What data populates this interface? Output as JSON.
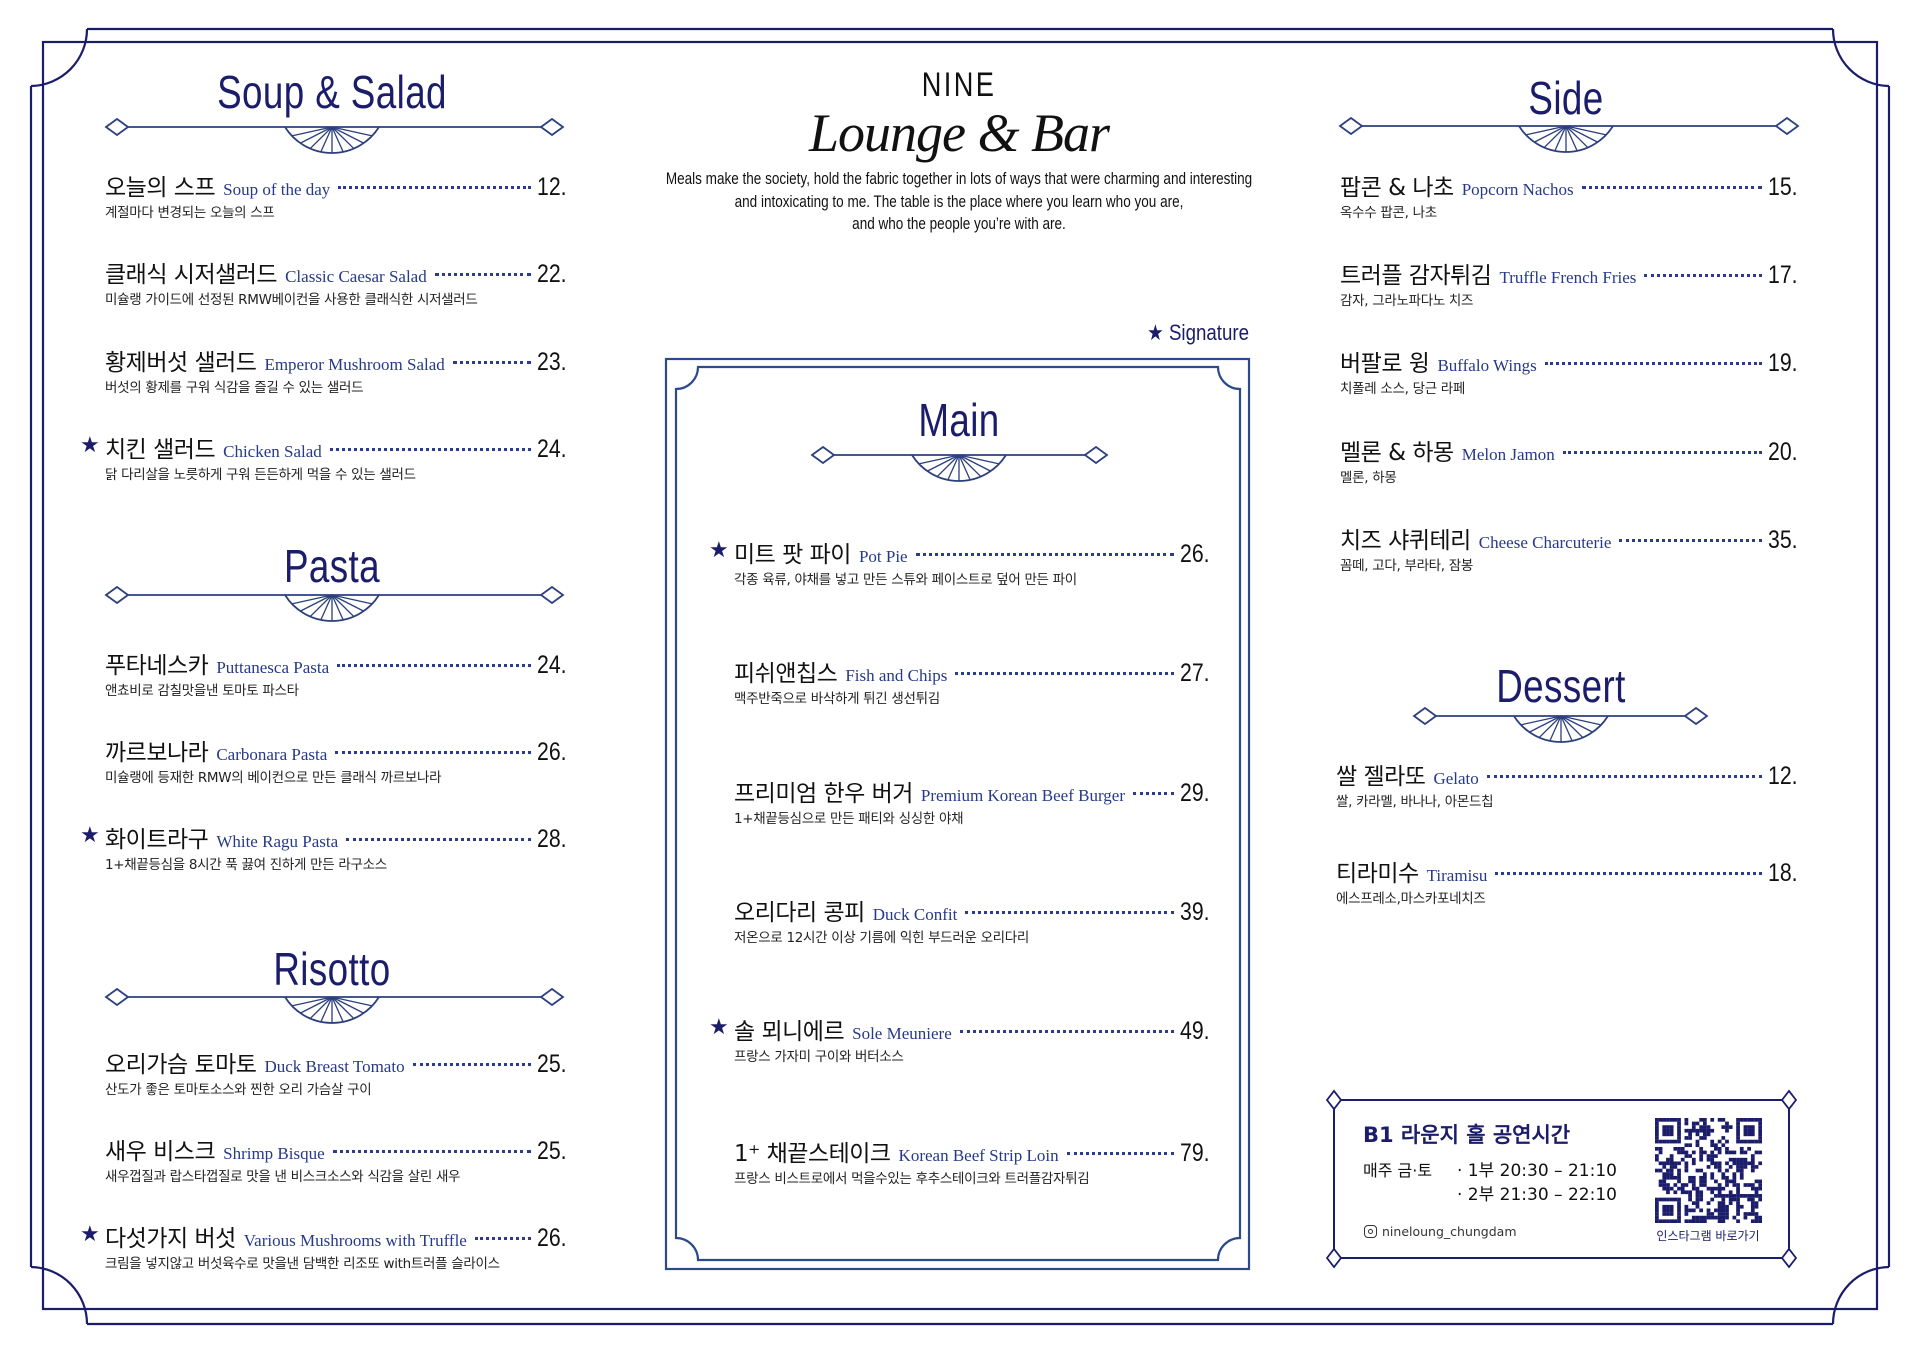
{
  "logo": {
    "top": "NINE",
    "script": "Lounge & Bar"
  },
  "tagline": [
    "Meals make the society, hold the fabric together in lots of ways that were charming and interesting",
    "and intoxicating to me. The table is the place where you learn who you are,",
    "and who the people you’re with are."
  ],
  "signature_legend": "★ Signature",
  "colors": {
    "navy": "#1b1d6b",
    "ornament": "#2c3f7e",
    "english": "#26398a",
    "text": "#111111"
  },
  "sections": {
    "soup": {
      "title": "Soup & Salad",
      "items": [
        {
          "ko": "오늘의 스프",
          "en": "Soup of the day",
          "price": "12.",
          "desc": "계절마다 변경되는 오늘의 스프",
          "signature": false
        },
        {
          "ko": "클래식 시저샐러드",
          "en": "Classic Caesar Salad",
          "price": "22.",
          "desc": "미슐랭 가이드에 선정된 RMW베이컨을 사용한 클래식한 시저샐러드",
          "signature": false
        },
        {
          "ko": "황제버섯 샐러드",
          "en": "Emperor Mushroom Salad",
          "price": "23.",
          "desc": "버섯의 황제를 구워 식감을 즐길 수 있는 샐러드",
          "signature": false
        },
        {
          "ko": "치킨 샐러드",
          "en": "Chicken Salad",
          "price": "24.",
          "desc": "닭 다리살을 노릇하게 구워 든든하게 먹을 수 있는 샐러드",
          "signature": true
        }
      ]
    },
    "pasta": {
      "title": "Pasta",
      "items": [
        {
          "ko": "푸타네스카",
          "en": "Puttanesca Pasta",
          "price": "24.",
          "desc": "앤쵸비로 감칠맛을낸 토마토 파스타",
          "signature": false
        },
        {
          "ko": "까르보나라",
          "en": "Carbonara Pasta",
          "price": "26.",
          "desc": "미슐랭에 등재한 RMW의 베이컨으로 만든 클래식 까르보나라",
          "signature": false
        },
        {
          "ko": "화이트라구",
          "en": "White Ragu Pasta",
          "price": "28.",
          "desc": "1+채끝등심을 8시간 푹 끓여 진하게 만든 라구소스",
          "signature": true
        }
      ]
    },
    "risotto": {
      "title": "Risotto",
      "items": [
        {
          "ko": "오리가슴 토마토",
          "en": "Duck Breast Tomato",
          "price": "25.",
          "desc": "산도가 좋은 토마토소스와 찐한 오리 가슴살 구이",
          "signature": false
        },
        {
          "ko": "새우 비스크",
          "en": "Shrimp Bisque",
          "price": "25.",
          "desc": "새우껍질과 랍스타껍질로 맛을 낸 비스크소스와 식감을 살린 새우",
          "signature": false
        },
        {
          "ko": "다섯가지 버섯",
          "en": "Various Mushrooms with Truffle",
          "price": "26.",
          "desc": "크림을 넣지않고 버섯육수로 맛을낸 담백한 리조또 with트러플 슬라이스",
          "signature": true
        }
      ]
    },
    "main": {
      "title": "Main",
      "items": [
        {
          "ko": "미트 팟 파이",
          "en": "Pot Pie",
          "price": "26.",
          "desc": "각종 육류, 야채를 넣고 만든 스튜와 페이스트로 덮어 만든 파이",
          "signature": true
        },
        {
          "ko": "피쉬앤칩스",
          "en": "Fish and Chips",
          "price": "27.",
          "desc": "맥주반죽으로 바삭하게 튀긴 생선튀김",
          "signature": false
        },
        {
          "ko": "프리미엄 한우 버거",
          "en": "Premium Korean Beef Burger",
          "price": "29.",
          "desc": "1+채끝등심으로 만든 패티와 싱싱한 야채",
          "signature": false
        },
        {
          "ko": "오리다리 콩피",
          "en": "Duck Confit",
          "price": "39.",
          "desc": "저온으로 12시간 이상 기름에 익힌 부드러운 오리다리",
          "signature": false
        },
        {
          "ko": "솔 뫼니에르",
          "en": "Sole Meuniere",
          "price": "49.",
          "desc": "프랑스 가자미 구이와 버터소스",
          "signature": true
        },
        {
          "ko": "1⁺ 채끝스테이크",
          "en": "Korean Beef Strip Loin",
          "price": "79.",
          "desc": "프랑스 비스트로에서 먹을수있는 후추스테이크와 트러플감자튀김",
          "signature": false
        }
      ]
    },
    "side": {
      "title": "Side",
      "items": [
        {
          "ko": "팝콘 & 나초",
          "en": "Popcorn Nachos",
          "price": "15.",
          "desc": "옥수수 팝콘, 나초",
          "signature": false
        },
        {
          "ko": "트러플 감자튀김",
          "en": "Truffle French Fries",
          "price": "17.",
          "desc": "감자, 그라노파다노 치즈",
          "signature": false
        },
        {
          "ko": "버팔로 윙",
          "en": "Buffalo Wings",
          "price": "19.",
          "desc": "치폴레 소스, 당근 라페",
          "signature": false
        },
        {
          "ko": "멜론 & 하몽",
          "en": "Melon Jamon",
          "price": "20.",
          "desc": "멜론, 하몽",
          "signature": false
        },
        {
          "ko": "치즈 샤퀴테리",
          "en": "Cheese Charcuterie",
          "price": "35.",
          "desc": "꼼떼, 고다, 부라타, 잠봉",
          "signature": false
        }
      ]
    },
    "dessert": {
      "title": "Dessert",
      "items": [
        {
          "ko": "쌀 젤라또",
          "en": "Gelato",
          "price": "12.",
          "desc": "쌀, 카라멜, 바나나, 아몬드칩",
          "signature": false
        },
        {
          "ko": "티라미수",
          "en": "Tiramisu",
          "price": "18.",
          "desc": "에스프레소,마스카포네치즈",
          "signature": false
        }
      ]
    }
  },
  "info": {
    "title": "B1 라운지 홀 공연시간",
    "days": "매주 금·토",
    "times": [
      "· 1부 20:30 – 21:10",
      "· 2부 21:30 – 22:10"
    ],
    "instagram_handle": "nineloung_chungdam",
    "qr_caption": "인스타그램 바로가기",
    "icon": "instagram-icon"
  }
}
